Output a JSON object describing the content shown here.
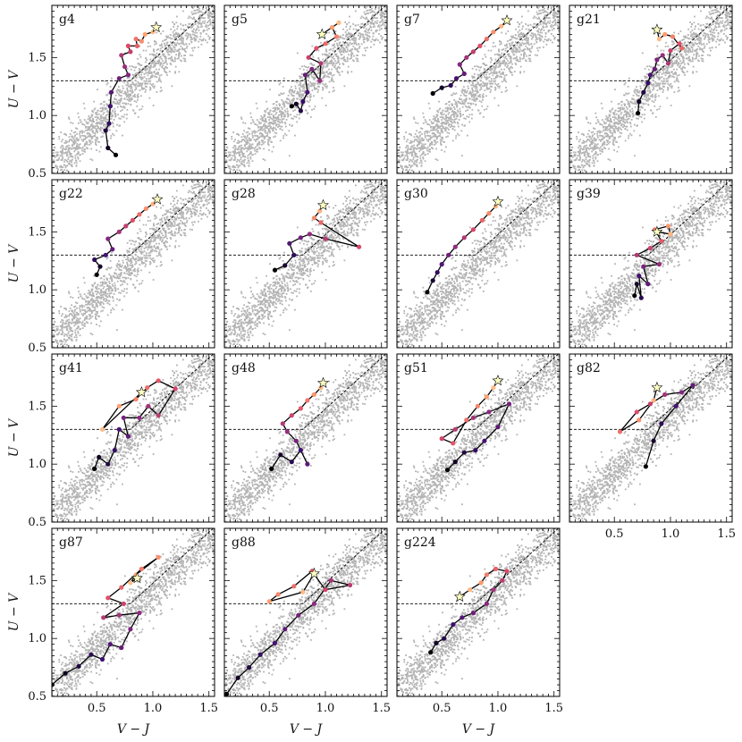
{
  "chart_data": {
    "type": "scatter",
    "layout": "4x4 grid of panels, 15 used",
    "xlabel": "V − J",
    "ylabel": "U − V",
    "xlim": [
      0.1,
      1.55
    ],
    "ylim": [
      0.5,
      1.95
    ],
    "xticks": [
      0.5,
      1.0,
      1.5
    ],
    "xtick_labels": [
      "0.5",
      "1.0",
      "1.5"
    ],
    "yticks": [
      0.5,
      1.0,
      1.5
    ],
    "ytick_labels": [
      "0.5",
      "1.0",
      "1.5"
    ],
    "background_population": {
      "color": "#b3b3b3",
      "description_of_locus": "diagonal band from (0.1,0.55) to (1.55,1.95)"
    },
    "uvj_boundary": {
      "horizontal_y": 1.3,
      "x_start": 0.1,
      "knee_x": 0.8,
      "slope": 0.88,
      "style": "dashed"
    },
    "track_colormap": [
      "#000004",
      "#3b0f70",
      "#8c2981",
      "#de4968",
      "#fe9f6d",
      "#fcfdbf"
    ],
    "final_marker": "star",
    "panels": [
      {
        "name": "g4",
        "track": [
          [
            0.67,
            0.66
          ],
          [
            0.6,
            0.72
          ],
          [
            0.58,
            0.87
          ],
          [
            0.61,
            0.93
          ],
          [
            0.62,
            1.08
          ],
          [
            0.63,
            1.2
          ],
          [
            0.7,
            1.32
          ],
          [
            0.78,
            1.35
          ],
          [
            0.75,
            1.42
          ],
          [
            0.72,
            1.52
          ],
          [
            0.8,
            1.55
          ],
          [
            0.78,
            1.6
          ],
          [
            0.86,
            1.6
          ],
          [
            0.85,
            1.66
          ],
          [
            0.9,
            1.64
          ],
          [
            0.93,
            1.7
          ],
          [
            1.0,
            1.72
          ],
          [
            1.03,
            1.76
          ]
        ]
      },
      {
        "name": "g5",
        "track": [
          [
            0.7,
            1.08
          ],
          [
            0.74,
            1.1
          ],
          [
            0.78,
            1.04
          ],
          [
            0.8,
            1.12
          ],
          [
            0.84,
            1.2
          ],
          [
            0.82,
            1.35
          ],
          [
            0.88,
            1.4
          ],
          [
            0.95,
            1.3
          ],
          [
            0.96,
            1.45
          ],
          [
            0.85,
            1.5
          ],
          [
            0.92,
            1.58
          ],
          [
            1.0,
            1.62
          ],
          [
            1.1,
            1.68
          ],
          [
            1.06,
            1.76
          ],
          [
            1.12,
            1.8
          ],
          [
            0.97,
            1.7
          ]
        ]
      },
      {
        "name": "g7",
        "track": [
          [
            0.42,
            1.19
          ],
          [
            0.5,
            1.24
          ],
          [
            0.58,
            1.26
          ],
          [
            0.63,
            1.32
          ],
          [
            0.7,
            1.36
          ],
          [
            0.66,
            1.44
          ],
          [
            0.72,
            1.5
          ],
          [
            0.78,
            1.55
          ],
          [
            0.84,
            1.6
          ],
          [
            0.9,
            1.66
          ],
          [
            0.96,
            1.72
          ],
          [
            1.03,
            1.77
          ],
          [
            1.08,
            1.82
          ]
        ]
      },
      {
        "name": "g21",
        "track": [
          [
            0.71,
            1.02
          ],
          [
            0.72,
            1.12
          ],
          [
            0.76,
            1.2
          ],
          [
            0.8,
            1.28
          ],
          [
            0.82,
            1.35
          ],
          [
            0.86,
            1.4
          ],
          [
            0.88,
            1.48
          ],
          [
            0.93,
            1.52
          ],
          [
            0.98,
            1.45
          ],
          [
            1.0,
            1.56
          ],
          [
            1.08,
            1.62
          ],
          [
            1.1,
            1.58
          ],
          [
            1.02,
            1.68
          ],
          [
            0.95,
            1.7
          ],
          [
            0.9,
            1.66
          ],
          [
            0.88,
            1.74
          ]
        ]
      },
      {
        "name": "g22",
        "track": [
          [
            0.5,
            1.13
          ],
          [
            0.53,
            1.2
          ],
          [
            0.48,
            1.26
          ],
          [
            0.58,
            1.3
          ],
          [
            0.64,
            1.35
          ],
          [
            0.6,
            1.44
          ],
          [
            0.7,
            1.5
          ],
          [
            0.76,
            1.55
          ],
          [
            0.82,
            1.6
          ],
          [
            0.88,
            1.65
          ],
          [
            0.94,
            1.7
          ],
          [
            1.0,
            1.74
          ],
          [
            1.04,
            1.78
          ]
        ]
      },
      {
        "name": "g28",
        "track": [
          [
            0.55,
            1.17
          ],
          [
            0.64,
            1.21
          ],
          [
            0.72,
            1.3
          ],
          [
            0.68,
            1.4
          ],
          [
            0.78,
            1.45
          ],
          [
            0.86,
            1.48
          ],
          [
            1.0,
            1.44
          ],
          [
            1.3,
            1.37
          ],
          [
            0.96,
            1.58
          ],
          [
            0.9,
            1.62
          ],
          [
            0.95,
            1.68
          ],
          [
            0.98,
            1.73
          ]
        ]
      },
      {
        "name": "g30",
        "track": [
          [
            0.37,
            0.98
          ],
          [
            0.42,
            1.08
          ],
          [
            0.46,
            1.15
          ],
          [
            0.5,
            1.22
          ],
          [
            0.56,
            1.3
          ],
          [
            0.62,
            1.37
          ],
          [
            0.7,
            1.45
          ],
          [
            0.78,
            1.52
          ],
          [
            0.86,
            1.6
          ],
          [
            0.92,
            1.66
          ],
          [
            0.98,
            1.72
          ],
          [
            1.0,
            1.76
          ]
        ]
      },
      {
        "name": "g39",
        "track": [
          [
            0.68,
            0.95
          ],
          [
            0.7,
            1.05
          ],
          [
            0.74,
            0.93
          ],
          [
            0.72,
            1.12
          ],
          [
            0.8,
            1.05
          ],
          [
            0.76,
            1.2
          ],
          [
            0.9,
            1.22
          ],
          [
            0.7,
            1.3
          ],
          [
            0.82,
            1.36
          ],
          [
            0.92,
            1.42
          ],
          [
            0.86,
            1.52
          ],
          [
            0.98,
            1.55
          ],
          [
            1.0,
            1.48
          ],
          [
            0.88,
            1.5
          ]
        ]
      },
      {
        "name": "g41",
        "track": [
          [
            0.48,
            0.96
          ],
          [
            0.52,
            1.06
          ],
          [
            0.6,
            1.0
          ],
          [
            0.66,
            1.12
          ],
          [
            0.7,
            1.3
          ],
          [
            0.78,
            1.24
          ],
          [
            0.74,
            1.4
          ],
          [
            0.88,
            1.4
          ],
          [
            0.96,
            1.5
          ],
          [
            1.05,
            1.42
          ],
          [
            1.2,
            1.65
          ],
          [
            1.05,
            1.72
          ],
          [
            0.95,
            1.66
          ],
          [
            0.85,
            1.56
          ],
          [
            0.7,
            1.5
          ],
          [
            0.55,
            1.3
          ],
          [
            0.9,
            1.62
          ]
        ]
      },
      {
        "name": "g48",
        "track": [
          [
            0.52,
            0.96
          ],
          [
            0.6,
            1.08
          ],
          [
            0.7,
            1.02
          ],
          [
            0.78,
            1.12
          ],
          [
            0.84,
            1.0
          ],
          [
            0.74,
            1.2
          ],
          [
            0.66,
            1.28
          ],
          [
            0.62,
            1.35
          ],
          [
            0.7,
            1.42
          ],
          [
            0.78,
            1.48
          ],
          [
            0.84,
            1.55
          ],
          [
            0.9,
            1.6
          ],
          [
            0.96,
            1.66
          ],
          [
            0.98,
            1.7
          ]
        ]
      },
      {
        "name": "g51",
        "track": [
          [
            0.55,
            0.95
          ],
          [
            0.62,
            1.02
          ],
          [
            0.7,
            1.1
          ],
          [
            0.8,
            1.12
          ],
          [
            0.88,
            1.2
          ],
          [
            1.0,
            1.32
          ],
          [
            1.1,
            1.52
          ],
          [
            0.92,
            1.45
          ],
          [
            0.78,
            1.4
          ],
          [
            0.62,
            1.3
          ],
          [
            0.5,
            1.22
          ],
          [
            0.6,
            1.18
          ],
          [
            0.72,
            1.38
          ],
          [
            0.82,
            1.5
          ],
          [
            0.9,
            1.58
          ],
          [
            0.96,
            1.66
          ],
          [
            1.0,
            1.72
          ]
        ]
      },
      {
        "name": "g82",
        "track": [
          [
            0.78,
            0.98
          ],
          [
            0.85,
            1.2
          ],
          [
            0.92,
            1.35
          ],
          [
            1.05,
            1.5
          ],
          [
            1.2,
            1.68
          ],
          [
            1.1,
            1.62
          ],
          [
            0.95,
            1.6
          ],
          [
            0.82,
            1.52
          ],
          [
            0.7,
            1.45
          ],
          [
            0.55,
            1.28
          ],
          [
            0.72,
            1.38
          ],
          [
            0.85,
            1.55
          ],
          [
            0.88,
            1.66
          ]
        ]
      },
      {
        "name": "g87",
        "track": [
          [
            0.1,
            0.6
          ],
          [
            0.22,
            0.7
          ],
          [
            0.34,
            0.76
          ],
          [
            0.45,
            0.86
          ],
          [
            0.55,
            0.82
          ],
          [
            0.62,
            0.95
          ],
          [
            0.72,
            0.92
          ],
          [
            0.8,
            1.08
          ],
          [
            0.88,
            1.22
          ],
          [
            0.7,
            1.2
          ],
          [
            0.56,
            1.18
          ],
          [
            0.74,
            1.3
          ],
          [
            0.6,
            1.35
          ],
          [
            0.72,
            1.44
          ],
          [
            0.9,
            1.6
          ],
          [
            1.05,
            1.7
          ],
          [
            0.85,
            1.55
          ],
          [
            0.8,
            1.48
          ],
          [
            0.86,
            1.52
          ]
        ]
      },
      {
        "name": "g88",
        "track": [
          [
            0.12,
            0.52
          ],
          [
            0.22,
            0.66
          ],
          [
            0.32,
            0.75
          ],
          [
            0.42,
            0.86
          ],
          [
            0.55,
            0.96
          ],
          [
            0.64,
            1.08
          ],
          [
            0.76,
            1.2
          ],
          [
            0.9,
            1.3
          ],
          [
            1.05,
            1.5
          ],
          [
            1.22,
            1.46
          ],
          [
            1.0,
            1.42
          ],
          [
            0.88,
            1.58
          ],
          [
            0.72,
            1.45
          ],
          [
            0.58,
            1.38
          ],
          [
            0.5,
            1.32
          ],
          [
            0.8,
            1.4
          ],
          [
            0.9,
            1.56
          ]
        ]
      },
      {
        "name": "g224",
        "track": [
          [
            0.4,
            0.88
          ],
          [
            0.45,
            0.96
          ],
          [
            0.52,
            1.0
          ],
          [
            0.6,
            1.12
          ],
          [
            0.68,
            1.18
          ],
          [
            0.78,
            1.22
          ],
          [
            0.9,
            1.3
          ],
          [
            0.96,
            1.42
          ],
          [
            1.04,
            1.5
          ],
          [
            1.08,
            1.58
          ],
          [
            0.98,
            1.6
          ],
          [
            0.9,
            1.55
          ],
          [
            0.85,
            1.48
          ],
          [
            0.75,
            1.42
          ],
          [
            0.66,
            1.36
          ]
        ]
      }
    ]
  }
}
